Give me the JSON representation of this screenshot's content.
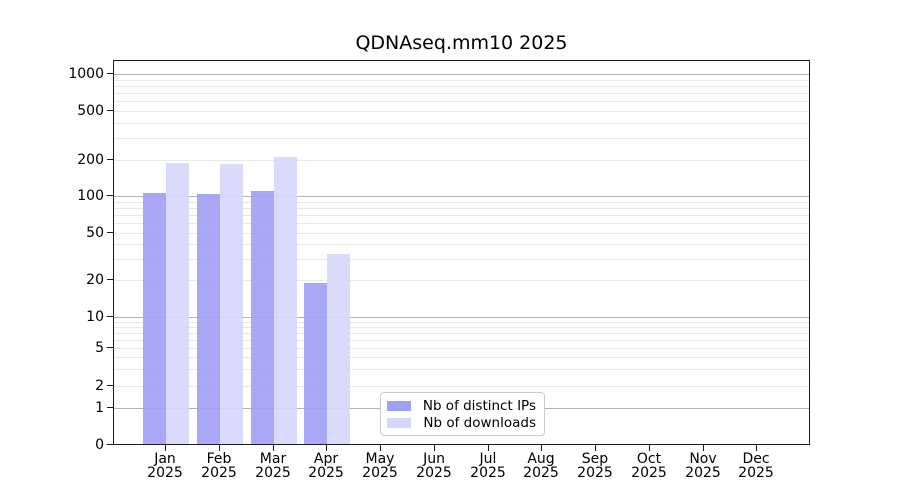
{
  "chart_data": {
    "type": "bar",
    "title": "QDNAseq.mm10 2025",
    "categories": [
      "Jan",
      "Feb",
      "Mar",
      "Apr",
      "May",
      "Jun",
      "Jul",
      "Aug",
      "Sep",
      "Oct",
      "Nov",
      "Dec"
    ],
    "year_label": "2025",
    "series": [
      {
        "name": "Nb of distinct IPs",
        "color": "#9f9ff6",
        "values": [
          106,
          103,
          111,
          19,
          null,
          null,
          null,
          null,
          null,
          null,
          null,
          null
        ]
      },
      {
        "name": "Nb of downloads",
        "color": "#d6d6fa",
        "values": [
          190,
          186,
          210,
          33,
          null,
          null,
          null,
          null,
          null,
          null,
          null,
          null
        ]
      }
    ],
    "y_axis": {
      "scale": "symlog",
      "ticks": [
        0,
        1,
        2,
        5,
        10,
        20,
        50,
        100,
        200,
        500,
        1000
      ],
      "ylim": [
        0,
        1000
      ]
    },
    "grid": true,
    "legend_position": "bottom-center"
  },
  "colors": {
    "major_grid": "#b3b3b3",
    "minor_grid": "#e8e8e8",
    "axis": "#1a1a1a",
    "background": "#ffffff"
  }
}
